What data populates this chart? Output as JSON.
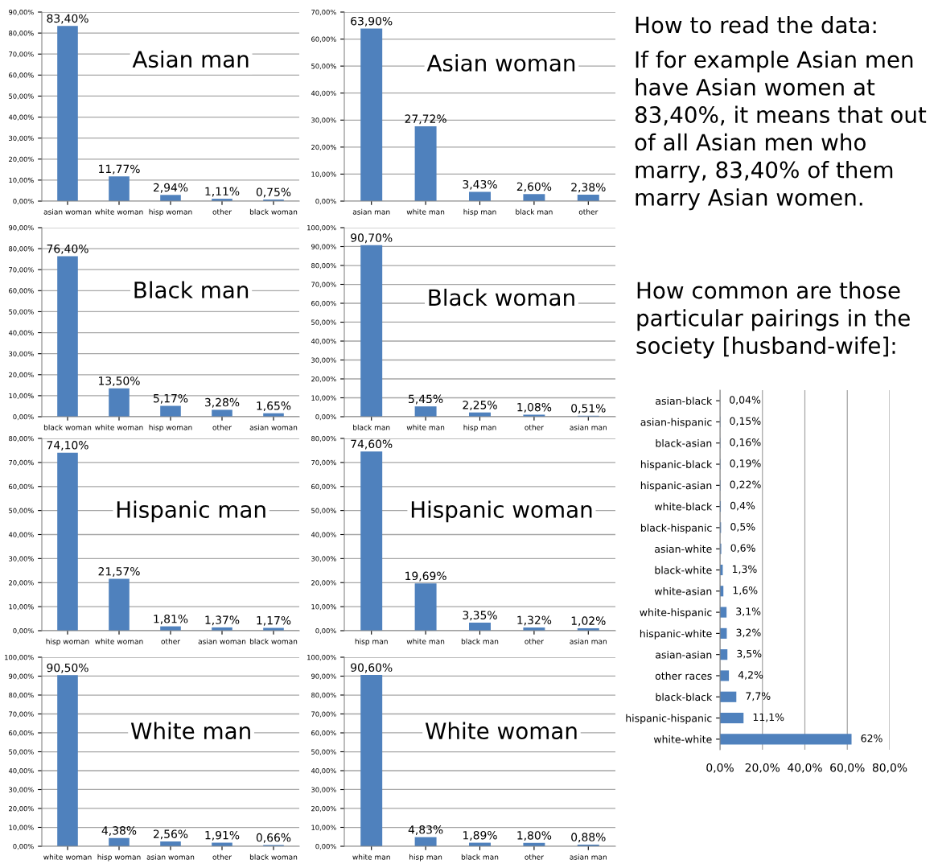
{
  "chart_data": [
    {
      "type": "bar",
      "title": "Asian man",
      "categories": [
        "asian woman",
        "white woman",
        "hisp woman",
        "other",
        "black woman"
      ],
      "values": [
        83.4,
        11.77,
        2.94,
        1.11,
        0.75
      ],
      "value_labels": [
        "83,40%",
        "11,77%",
        "2,94%",
        "1,11%",
        "0,75%"
      ],
      "color": "#4f81bd",
      "ylim": [
        0,
        90
      ],
      "yticks": [
        {
          "value": 0,
          "label": "0,00%"
        },
        {
          "value": 10,
          "label": "10,00%"
        },
        {
          "value": 20,
          "label": "20,00%"
        },
        {
          "value": 30,
          "label": "30,00%"
        },
        {
          "value": 40,
          "label": "40,00%"
        },
        {
          "value": 50,
          "label": "50,00%"
        },
        {
          "value": 60,
          "label": "60,00%"
        },
        {
          "value": 70,
          "label": "70,00%"
        },
        {
          "value": 80,
          "label": "80,00%"
        },
        {
          "value": 90,
          "label": "90,00%"
        }
      ],
      "grid": "y"
    },
    {
      "type": "bar",
      "title": "Asian woman",
      "categories": [
        "asian man",
        "white man",
        "hisp man",
        "black man",
        "other"
      ],
      "values": [
        63.9,
        27.72,
        3.43,
        2.6,
        2.38
      ],
      "value_labels": [
        "63,90%",
        "27,72%",
        "3,43%",
        "2,60%",
        "2,38%"
      ],
      "color": "#4f81bd",
      "ylim": [
        0,
        70
      ],
      "yticks": [
        {
          "value": 0,
          "label": "0,00%"
        },
        {
          "value": 10,
          "label": "10,00%"
        },
        {
          "value": 20,
          "label": "20,00%"
        },
        {
          "value": 30,
          "label": "30,00%"
        },
        {
          "value": 40,
          "label": "40,00%"
        },
        {
          "value": 50,
          "label": "50,00%"
        },
        {
          "value": 60,
          "label": "60,00%"
        },
        {
          "value": 70,
          "label": "70,00%"
        }
      ],
      "grid": "y"
    },
    {
      "type": "other",
      "title": "How to read the data:",
      "annotations": [
        "If for example Asian men have Asian women at 83,40%, it means that out of all Asian men who marry, 83,40% of them marry Asian women."
      ]
    },
    {
      "type": "bar",
      "title": "Black man",
      "categories": [
        "black woman",
        "white woman",
        "hisp woman",
        "other",
        "asian woman"
      ],
      "values": [
        76.4,
        13.5,
        5.17,
        3.28,
        1.65
      ],
      "value_labels": [
        "76,40%",
        "13,50%",
        "5,17%",
        "3,28%",
        "1,65%"
      ],
      "color": "#4f81bd",
      "ylim": [
        0,
        90
      ],
      "yticks": [
        {
          "value": 0,
          "label": "0,00%"
        },
        {
          "value": 10,
          "label": "10,00%"
        },
        {
          "value": 20,
          "label": "20,00%"
        },
        {
          "value": 30,
          "label": "30,00%"
        },
        {
          "value": 40,
          "label": "40,00%"
        },
        {
          "value": 50,
          "label": "50,00%"
        },
        {
          "value": 60,
          "label": "60,00%"
        },
        {
          "value": 70,
          "label": "70,00%"
        },
        {
          "value": 80,
          "label": "80,00%"
        },
        {
          "value": 90,
          "label": "90,00%"
        }
      ],
      "grid": "y"
    },
    {
      "type": "bar",
      "title": "Black woman",
      "categories": [
        "black man",
        "white man",
        "hisp man",
        "other",
        "asian man"
      ],
      "values": [
        90.7,
        5.45,
        2.25,
        1.08,
        0.51
      ],
      "value_labels": [
        "90,70%",
        "5,45%",
        "2,25%",
        "1,08%",
        "0,51%"
      ],
      "color": "#4f81bd",
      "ylim": [
        0,
        100
      ],
      "yticks": [
        {
          "value": 0,
          "label": "0,00%"
        },
        {
          "value": 10,
          "label": "10,00%"
        },
        {
          "value": 20,
          "label": "20,00%"
        },
        {
          "value": 30,
          "label": "30,00%"
        },
        {
          "value": 40,
          "label": "40,00%"
        },
        {
          "value": 50,
          "label": "50,00%"
        },
        {
          "value": 60,
          "label": "60,00%"
        },
        {
          "value": 70,
          "label": "70,00%"
        },
        {
          "value": 80,
          "label": "80,00%"
        },
        {
          "value": 90,
          "label": "90,00%"
        },
        {
          "value": 100,
          "label": "100,00%"
        }
      ],
      "grid": "y"
    },
    {
      "type": "bar",
      "title": "Hispanic man",
      "categories": [
        "hisp woman",
        "white woman",
        "other",
        "asian woman",
        "black woman"
      ],
      "values": [
        74.1,
        21.57,
        1.81,
        1.37,
        1.17
      ],
      "value_labels": [
        "74,10%",
        "21,57%",
        "1,81%",
        "1,37%",
        "1,17%"
      ],
      "color": "#4f81bd",
      "ylim": [
        0,
        80
      ],
      "yticks": [
        {
          "value": 0,
          "label": "0,00%"
        },
        {
          "value": 10,
          "label": "10,00%"
        },
        {
          "value": 20,
          "label": "20,00%"
        },
        {
          "value": 30,
          "label": "30,00%"
        },
        {
          "value": 40,
          "label": "40,00%"
        },
        {
          "value": 50,
          "label": "50,00%"
        },
        {
          "value": 60,
          "label": "60,00%"
        },
        {
          "value": 70,
          "label": "70,00%"
        },
        {
          "value": 80,
          "label": "80,00%"
        }
      ],
      "grid": "y"
    },
    {
      "type": "bar",
      "title": "Hispanic woman",
      "categories": [
        "hisp man",
        "white man",
        "black man",
        "other",
        "asian man"
      ],
      "values": [
        74.6,
        19.69,
        3.35,
        1.32,
        1.02
      ],
      "value_labels": [
        "74,60%",
        "19,69%",
        "3,35%",
        "1,32%",
        "1,02%"
      ],
      "color": "#4f81bd",
      "ylim": [
        0,
        80
      ],
      "yticks": [
        {
          "value": 0,
          "label": "0,00%"
        },
        {
          "value": 10,
          "label": "10,00%"
        },
        {
          "value": 20,
          "label": "20,00%"
        },
        {
          "value": 30,
          "label": "30,00%"
        },
        {
          "value": 40,
          "label": "40,00%"
        },
        {
          "value": 50,
          "label": "50,00%"
        },
        {
          "value": 60,
          "label": "60,00%"
        },
        {
          "value": 70,
          "label": "70,00%"
        },
        {
          "value": 80,
          "label": "80,00%"
        }
      ],
      "grid": "y"
    },
    {
      "type": "bar",
      "title": "White man",
      "categories": [
        "white woman",
        "hisp woman",
        "asian woman",
        "other",
        "black woman"
      ],
      "values": [
        90.5,
        4.38,
        2.56,
        1.91,
        0.66
      ],
      "value_labels": [
        "90,50%",
        "4,38%",
        "2,56%",
        "1,91%",
        "0,66%"
      ],
      "color": "#4f81bd",
      "ylim": [
        0,
        100
      ],
      "yticks": [
        {
          "value": 0,
          "label": "0,00%"
        },
        {
          "value": 10,
          "label": "10,00%"
        },
        {
          "value": 20,
          "label": "20,00%"
        },
        {
          "value": 30,
          "label": "30,00%"
        },
        {
          "value": 40,
          "label": "40,00%"
        },
        {
          "value": 50,
          "label": "50,00%"
        },
        {
          "value": 60,
          "label": "60,00%"
        },
        {
          "value": 70,
          "label": "70,00%"
        },
        {
          "value": 80,
          "label": "80,00%"
        },
        {
          "value": 90,
          "label": "90,00%"
        },
        {
          "value": 100,
          "label": "100,00%"
        }
      ],
      "grid": "y"
    },
    {
      "type": "bar",
      "title": "White woman",
      "categories": [
        "white man",
        "hisp man",
        "black man",
        "other",
        "asian man"
      ],
      "values": [
        90.6,
        4.83,
        1.89,
        1.8,
        0.88
      ],
      "value_labels": [
        "90,60%",
        "4,83%",
        "1,89%",
        "1,80%",
        "0,88%"
      ],
      "color": "#4f81bd",
      "ylim": [
        0,
        100
      ],
      "yticks": [
        {
          "value": 0,
          "label": "0,00%"
        },
        {
          "value": 10,
          "label": "10,00%"
        },
        {
          "value": 20,
          "label": "20,00%"
        },
        {
          "value": 30,
          "label": "30,00%"
        },
        {
          "value": 40,
          "label": "40,00%"
        },
        {
          "value": 50,
          "label": "50,00%"
        },
        {
          "value": 60,
          "label": "60,00%"
        },
        {
          "value": 70,
          "label": "70,00%"
        },
        {
          "value": 80,
          "label": "80,00%"
        },
        {
          "value": 90,
          "label": "90,00%"
        },
        {
          "value": 100,
          "label": "100,00%"
        }
      ],
      "grid": "y"
    },
    {
      "type": "bar",
      "orientation": "horizontal",
      "title": "How common are those particular pairings in the society [husband-wife]:",
      "categories": [
        "asian-black",
        "asian-hispanic",
        "black-asian",
        "hispanic-black",
        "hispanic-asian",
        "white-black",
        "black-hispanic",
        "asian-white",
        "black-white",
        "white-asian",
        "white-hispanic",
        "hispanic-white",
        "asian-asian",
        "other races",
        "black-black",
        "hispanic-hispanic",
        "white-white"
      ],
      "values": [
        0.04,
        0.15,
        0.16,
        0.19,
        0.22,
        0.4,
        0.5,
        0.6,
        1.3,
        1.6,
        3.1,
        3.2,
        3.5,
        4.2,
        7.7,
        11.1,
        62
      ],
      "value_labels": [
        "0,04%",
        "0,15%",
        "0,16%",
        "0,19%",
        "0,22%",
        "0,4%",
        "0,5%",
        "0,6%",
        "1,3%",
        "1,6%",
        "3,1%",
        "3,2%",
        "3,5%",
        "4,2%",
        "7,7%",
        "11,1%",
        "62%"
      ],
      "color": "#4f81bd",
      "xlim": [
        0,
        80
      ],
      "xticks": [
        {
          "value": 0,
          "label": "0,0%"
        },
        {
          "value": 20,
          "label": "20,0%"
        },
        {
          "value": 40,
          "label": "40,0%"
        },
        {
          "value": 60,
          "label": "60,0%"
        },
        {
          "value": 80,
          "label": "80,0%"
        }
      ],
      "grid": "x"
    }
  ]
}
